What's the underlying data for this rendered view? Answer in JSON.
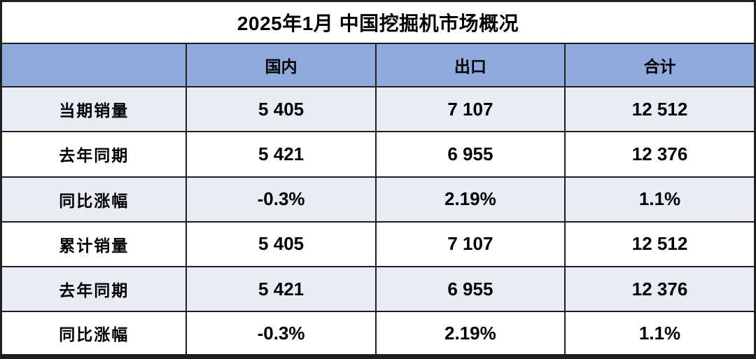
{
  "chart_data": {
    "type": "table",
    "title": "2025年1月 中国挖掘机市场概况",
    "columns": [
      "",
      "国内",
      "出口",
      "合计"
    ],
    "rows": [
      [
        "当期销量",
        "5 405",
        "7 107",
        "12 512"
      ],
      [
        "去年同期",
        "5 421",
        "6 955",
        "12 376"
      ],
      [
        "同比涨幅",
        "-0.3%",
        "2.19%",
        "1.1%"
      ],
      [
        "累计销量",
        "5 405",
        "7 107",
        "12 512"
      ],
      [
        "去年同期",
        "5 421",
        "6 955",
        "12 376"
      ],
      [
        "同比涨幅",
        "-0.3%",
        "2.19%",
        "1.1%"
      ]
    ],
    "layout_hints": {
      "banded_rows": "odd rows shaded, starting with first data row",
      "title_merged_across_columns": true
    }
  },
  "colors": {
    "header_bg": "#8FAADC",
    "banded_row_bg": "#E9EBF5",
    "plain_row_bg": "#FFFFFF",
    "border": "#1F1F1F",
    "text": "#000000"
  }
}
